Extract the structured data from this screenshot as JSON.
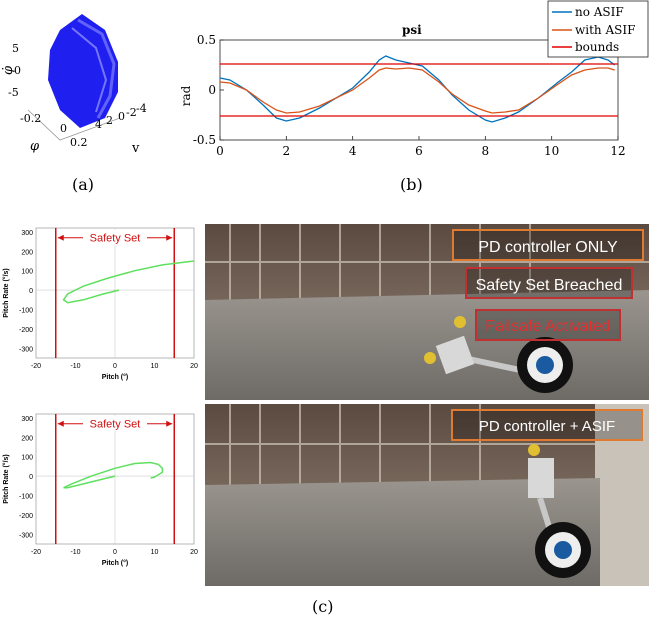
{
  "captions": {
    "a": "(a)",
    "b": "(b)",
    "c": "(c)"
  },
  "chart_data": [
    {
      "type": "surface3d",
      "id": "a",
      "zlabel": "φ̇",
      "xlabel": "φ",
      "ylabel": "v",
      "z_ticks": [
        "5",
        "0",
        "-5"
      ],
      "x_ticks": [
        "-0.2",
        "0",
        "0.2"
      ],
      "y_ticks": [
        "4",
        "2",
        "0",
        "-2",
        "-4"
      ],
      "color": "#1f1ff0"
    },
    {
      "type": "line",
      "id": "b",
      "title": "psi",
      "ylabel": "rad",
      "xlim": [
        0,
        12
      ],
      "ylim": [
        -0.5,
        0.5
      ],
      "x_ticks": [
        0,
        2,
        4,
        6,
        8,
        10,
        12
      ],
      "y_ticks": [
        0.5,
        0,
        -0.5
      ],
      "legend_position": "top-right",
      "series": [
        {
          "name": "no ASIF",
          "color": "#0072bd",
          "x": [
            0,
            0.3,
            0.8,
            1.3,
            1.7,
            2.0,
            2.4,
            3.0,
            4.0,
            4.5,
            4.8,
            5.0,
            5.3,
            5.7,
            6.1,
            6.6,
            7.0,
            7.5,
            8.0,
            8.2,
            8.6,
            9.0,
            9.6,
            10.2,
            10.6,
            11.0,
            11.4,
            11.7,
            11.9
          ],
          "y": [
            0.12,
            0.1,
            0.0,
            -0.15,
            -0.28,
            -0.31,
            -0.28,
            -0.18,
            0.02,
            0.18,
            0.3,
            0.34,
            0.3,
            0.27,
            0.24,
            0.1,
            -0.05,
            -0.2,
            -0.3,
            -0.32,
            -0.28,
            -0.22,
            -0.08,
            0.08,
            0.18,
            0.3,
            0.33,
            0.3,
            0.25
          ]
        },
        {
          "name": "with ASIF",
          "color": "#d95319",
          "x": [
            0,
            0.3,
            0.8,
            1.3,
            1.7,
            2.0,
            2.4,
            3.0,
            4.0,
            4.5,
            4.8,
            5.0,
            5.3,
            5.7,
            6.1,
            6.6,
            7.0,
            7.5,
            8.0,
            8.2,
            8.6,
            9.0,
            9.6,
            10.2,
            10.6,
            11.0,
            11.4,
            11.7,
            11.9
          ],
          "y": [
            0.08,
            0.07,
            0.0,
            -0.12,
            -0.2,
            -0.23,
            -0.22,
            -0.16,
            0.0,
            0.12,
            0.2,
            0.22,
            0.21,
            0.22,
            0.2,
            0.08,
            -0.04,
            -0.15,
            -0.21,
            -0.23,
            -0.22,
            -0.2,
            -0.08,
            0.06,
            0.15,
            0.2,
            0.22,
            0.22,
            0.2
          ]
        },
        {
          "name": "bounds",
          "color": "#e00000",
          "x": [
            0,
            12
          ],
          "y": [
            0.26,
            0.26
          ],
          "mirror": true
        }
      ]
    },
    {
      "type": "line",
      "id": "c-top",
      "xlabel": "Pitch (°)",
      "ylabel": "Pitch Rate (°/s)",
      "xlim": [
        -20,
        20
      ],
      "ylim": [
        -350,
        320
      ],
      "x_ticks": [
        -20,
        -10,
        0,
        10,
        20
      ],
      "y_ticks": [
        300,
        200,
        100,
        0,
        -100,
        -200,
        -300
      ],
      "annotation": "Safety Set",
      "bounds_x": [
        -15,
        15
      ],
      "series": [
        {
          "color": "#5ee05e",
          "x": [
            1,
            0,
            -3,
            -8,
            -12,
            -13,
            -12,
            -8,
            -2,
            5,
            12,
            20
          ],
          "y": [
            0,
            -5,
            -20,
            -50,
            -65,
            -50,
            -20,
            20,
            60,
            100,
            130,
            150
          ]
        }
      ]
    },
    {
      "type": "line",
      "id": "c-bottom",
      "xlabel": "Pitch (°)",
      "ylabel": "Pitch Rate (°/s)",
      "xlim": [
        -20,
        20
      ],
      "ylim": [
        -350,
        320
      ],
      "x_ticks": [
        -20,
        -10,
        0,
        10,
        20
      ],
      "y_ticks": [
        300,
        200,
        100,
        0,
        -100,
        -200,
        -300
      ],
      "annotation": "Safety Set",
      "bounds_x": [
        -15,
        15
      ],
      "series": [
        {
          "color": "#5ee05e",
          "x": [
            0,
            -3,
            -8,
            -12,
            -13,
            -11,
            -6,
            0,
            5,
            9,
            11,
            12,
            12,
            10,
            9,
            10
          ],
          "y": [
            0,
            -15,
            -40,
            -60,
            -60,
            -40,
            0,
            40,
            65,
            70,
            60,
            40,
            20,
            -5,
            -10,
            -5
          ]
        }
      ]
    }
  ],
  "photos": {
    "top": {
      "labels": [
        "PD controller ONLY",
        "Safety Set Breached",
        "Failsafe Activated"
      ]
    },
    "bottom": {
      "labels": [
        "PD controller + ASIF"
      ]
    }
  }
}
